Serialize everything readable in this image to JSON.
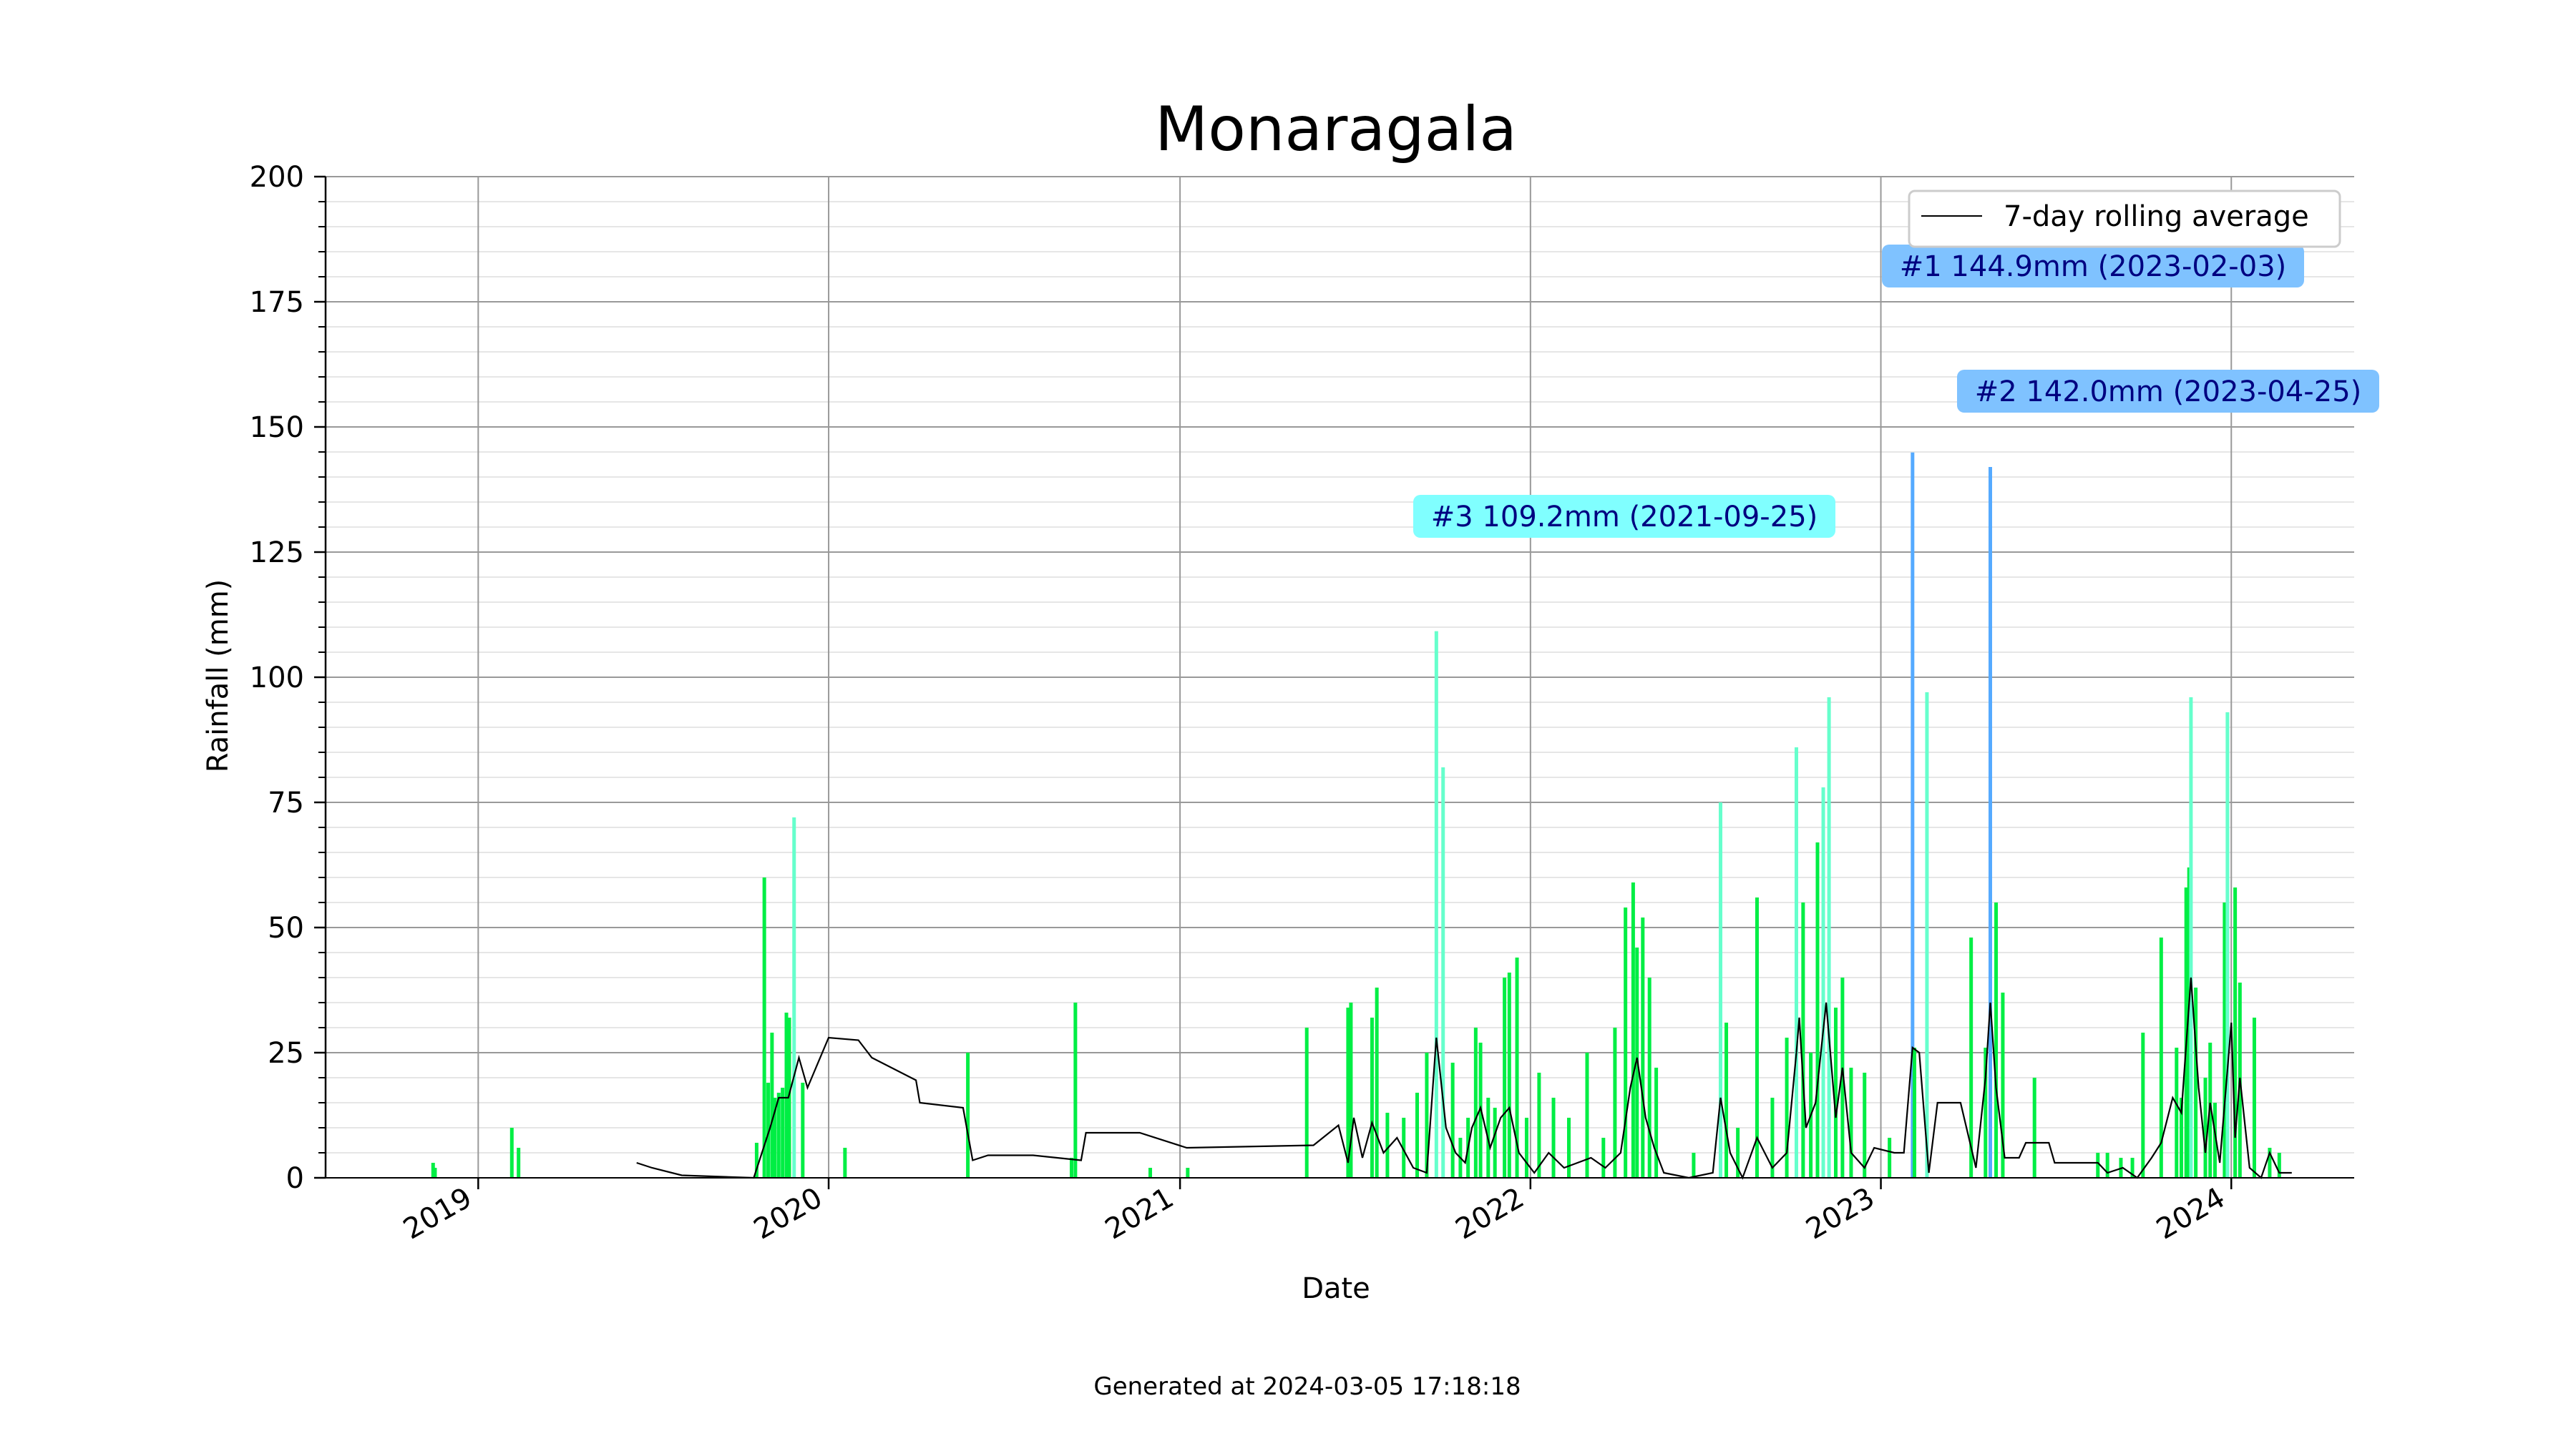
{
  "chart_data": {
    "type": "bar",
    "title": "Monaragala",
    "xlabel": "Date",
    "ylabel": "Rainfall (mm)",
    "footer": "Generated at 2024-03-05 17:18:18",
    "xlim": [
      "2018-07-26",
      "2024-05-08"
    ],
    "ylim": [
      0,
      200
    ],
    "yticks": [
      0,
      25,
      50,
      75,
      100,
      125,
      150,
      175,
      200
    ],
    "xticks": [
      {
        "date": "2019-01-01",
        "label": "2019"
      },
      {
        "date": "2020-01-01",
        "label": "2020"
      },
      {
        "date": "2021-01-01",
        "label": "2021"
      },
      {
        "date": "2022-01-01",
        "label": "2022"
      },
      {
        "date": "2023-01-01",
        "label": "2023"
      },
      {
        "date": "2024-01-01",
        "label": "2024"
      }
    ],
    "grid": true,
    "legend": {
      "position": "top-right",
      "entries": [
        {
          "label": "7-day rolling average",
          "color": "#000000"
        }
      ]
    },
    "colors": {
      "low": "#00ee44",
      "mid": "#66ffcc",
      "high": "#55aaff",
      "line": "#000000",
      "grid": "#999999",
      "minor_grid": "#e6e6e6"
    },
    "annotations": [
      {
        "text": "#1 144.9mm (2023-02-03)",
        "date": "2023-02-03",
        "value": 144.9,
        "bg": "#7fc2ff"
      },
      {
        "text": "#2 142.0mm (2023-04-25)",
        "date": "2023-04-25",
        "value": 142.0,
        "bg": "#7fc2ff"
      },
      {
        "text": "#3 109.2mm (2021-09-25)",
        "date": "2021-09-25",
        "value": 109.2,
        "bg": "#80ffff"
      }
    ],
    "series": [
      {
        "type": "bar",
        "points": [
          [
            "2018-11-15",
            3
          ],
          [
            "2018-11-17",
            2
          ],
          [
            "2019-02-05",
            10
          ],
          [
            "2019-02-12",
            6
          ],
          [
            "2019-10-18",
            7
          ],
          [
            "2019-10-26",
            60
          ],
          [
            "2019-10-30",
            19
          ],
          [
            "2019-11-03",
            29
          ],
          [
            "2019-11-06",
            16
          ],
          [
            "2019-11-10",
            17
          ],
          [
            "2019-11-14",
            18
          ],
          [
            "2019-11-18",
            33
          ],
          [
            "2019-11-21",
            32
          ],
          [
            "2019-11-26",
            72
          ],
          [
            "2019-12-05",
            19
          ],
          [
            "2020-01-18",
            6
          ],
          [
            "2020-05-25",
            25
          ],
          [
            "2020-09-10",
            4
          ],
          [
            "2020-09-14",
            35
          ],
          [
            "2020-12-01",
            2
          ],
          [
            "2021-01-09",
            2
          ],
          [
            "2021-05-13",
            30
          ],
          [
            "2021-06-25",
            34
          ],
          [
            "2021-06-28",
            35
          ],
          [
            "2021-07-20",
            32
          ],
          [
            "2021-07-25",
            38
          ],
          [
            "2021-08-05",
            13
          ],
          [
            "2021-08-22",
            12
          ],
          [
            "2021-09-05",
            17
          ],
          [
            "2021-09-15",
            25
          ],
          [
            "2021-09-25",
            109.2
          ],
          [
            "2021-10-02",
            82
          ],
          [
            "2021-10-12",
            23
          ],
          [
            "2021-10-20",
            8
          ],
          [
            "2021-10-28",
            12
          ],
          [
            "2021-11-05",
            30
          ],
          [
            "2021-11-10",
            27
          ],
          [
            "2021-11-18",
            16
          ],
          [
            "2021-11-25",
            14
          ],
          [
            "2021-12-05",
            40
          ],
          [
            "2021-12-10",
            41
          ],
          [
            "2021-12-18",
            44
          ],
          [
            "2021-12-28",
            12
          ],
          [
            "2022-01-10",
            21
          ],
          [
            "2022-01-25",
            16
          ],
          [
            "2022-02-10",
            12
          ],
          [
            "2022-03-01",
            25
          ],
          [
            "2022-03-18",
            8
          ],
          [
            "2022-03-30",
            30
          ],
          [
            "2022-04-10",
            54
          ],
          [
            "2022-04-18",
            59
          ],
          [
            "2022-04-22",
            46
          ],
          [
            "2022-04-28",
            52
          ],
          [
            "2022-05-05",
            40
          ],
          [
            "2022-05-12",
            22
          ],
          [
            "2022-06-20",
            5
          ],
          [
            "2022-07-18",
            75
          ],
          [
            "2022-07-24",
            31
          ],
          [
            "2022-08-05",
            10
          ],
          [
            "2022-08-25",
            56
          ],
          [
            "2022-09-10",
            16
          ],
          [
            "2022-09-25",
            28
          ],
          [
            "2022-10-05",
            86
          ],
          [
            "2022-10-12",
            55
          ],
          [
            "2022-10-20",
            25
          ],
          [
            "2022-10-27",
            67
          ],
          [
            "2022-11-02",
            78
          ],
          [
            "2022-11-08",
            96
          ],
          [
            "2022-11-15",
            34
          ],
          [
            "2022-11-22",
            40
          ],
          [
            "2022-12-01",
            22
          ],
          [
            "2022-12-15",
            21
          ],
          [
            "2023-01-10",
            8
          ],
          [
            "2023-02-03",
            144.9
          ],
          [
            "2023-02-05",
            26
          ],
          [
            "2023-02-18",
            97
          ],
          [
            "2023-04-05",
            48
          ],
          [
            "2023-04-20",
            26
          ],
          [
            "2023-04-25",
            142.0
          ],
          [
            "2023-05-01",
            55
          ],
          [
            "2023-05-08",
            37
          ],
          [
            "2023-06-10",
            20
          ],
          [
            "2023-08-15",
            5
          ],
          [
            "2023-08-25",
            5
          ],
          [
            "2023-09-08",
            4
          ],
          [
            "2023-09-20",
            4
          ],
          [
            "2023-10-01",
            29
          ],
          [
            "2023-10-20",
            48
          ],
          [
            "2023-11-05",
            26
          ],
          [
            "2023-11-10",
            16
          ],
          [
            "2023-11-15",
            58
          ],
          [
            "2023-11-18",
            62
          ],
          [
            "2023-11-20",
            96
          ],
          [
            "2023-11-25",
            38
          ],
          [
            "2023-12-05",
            20
          ],
          [
            "2023-12-10",
            27
          ],
          [
            "2023-12-15",
            15
          ],
          [
            "2023-12-25",
            55
          ],
          [
            "2023-12-28",
            93
          ],
          [
            "2024-01-05",
            58
          ],
          [
            "2024-01-10",
            39
          ],
          [
            "2024-01-25",
            32
          ],
          [
            "2024-02-10",
            6
          ],
          [
            "2024-02-20",
            5
          ]
        ]
      },
      {
        "type": "line",
        "name": "7-day rolling average",
        "points": [
          [
            "2019-06-15",
            3
          ],
          [
            "2019-07-01",
            2
          ],
          [
            "2019-08-01",
            0.5
          ],
          [
            "2019-10-15",
            0
          ],
          [
            "2019-11-01",
            10
          ],
          [
            "2019-11-10",
            16
          ],
          [
            "2019-11-20",
            16
          ],
          [
            "2019-12-01",
            24
          ],
          [
            "2019-12-10",
            18
          ],
          [
            "2020-01-01",
            28
          ],
          [
            "2020-02-01",
            27.5
          ],
          [
            "2020-02-15",
            24
          ],
          [
            "2020-04-01",
            19.5
          ],
          [
            "2020-04-05",
            15
          ],
          [
            "2020-05-20",
            14
          ],
          [
            "2020-05-30",
            3.5
          ],
          [
            "2020-06-15",
            4.5
          ],
          [
            "2020-08-01",
            4.5
          ],
          [
            "2020-09-20",
            3.5
          ],
          [
            "2020-09-25",
            9
          ],
          [
            "2020-10-20",
            9
          ],
          [
            "2020-11-20",
            9
          ],
          [
            "2021-01-08",
            6
          ],
          [
            "2021-05-20",
            6.5
          ],
          [
            "2021-06-15",
            10.5
          ],
          [
            "2021-06-25",
            3
          ],
          [
            "2021-07-01",
            12
          ],
          [
            "2021-07-10",
            4
          ],
          [
            "2021-07-20",
            11
          ],
          [
            "2021-08-01",
            5
          ],
          [
            "2021-08-15",
            8
          ],
          [
            "2021-09-01",
            2
          ],
          [
            "2021-09-15",
            1
          ],
          [
            "2021-09-25",
            28
          ],
          [
            "2021-10-05",
            10
          ],
          [
            "2021-10-15",
            5
          ],
          [
            "2021-10-25",
            3
          ],
          [
            "2021-11-01",
            10
          ],
          [
            "2021-11-10",
            14
          ],
          [
            "2021-11-20",
            6
          ],
          [
            "2021-12-01",
            12
          ],
          [
            "2021-12-10",
            14
          ],
          [
            "2021-12-20",
            5
          ],
          [
            "2022-01-05",
            1
          ],
          [
            "2022-01-20",
            5
          ],
          [
            "2022-02-05",
            2
          ],
          [
            "2022-03-05",
            4
          ],
          [
            "2022-03-20",
            2
          ],
          [
            "2022-04-05",
            5
          ],
          [
            "2022-04-15",
            18
          ],
          [
            "2022-04-22",
            24
          ],
          [
            "2022-05-01",
            12
          ],
          [
            "2022-05-10",
            6
          ],
          [
            "2022-05-20",
            1
          ],
          [
            "2022-06-15",
            0
          ],
          [
            "2022-07-10",
            1
          ],
          [
            "2022-07-18",
            16
          ],
          [
            "2022-07-28",
            5
          ],
          [
            "2022-08-10",
            0
          ],
          [
            "2022-08-25",
            8
          ],
          [
            "2022-09-10",
            2
          ],
          [
            "2022-09-25",
            5
          ],
          [
            "2022-10-05",
            25
          ],
          [
            "2022-10-08",
            32
          ],
          [
            "2022-10-15",
            10
          ],
          [
            "2022-10-25",
            15
          ],
          [
            "2022-11-05",
            35
          ],
          [
            "2022-11-15",
            12
          ],
          [
            "2022-11-22",
            22
          ],
          [
            "2022-12-01",
            5
          ],
          [
            "2022-12-15",
            2
          ],
          [
            "2022-12-25",
            6
          ],
          [
            "2023-01-15",
            5
          ],
          [
            "2023-01-25",
            5
          ],
          [
            "2023-02-03",
            26
          ],
          [
            "2023-02-10",
            25
          ],
          [
            "2023-02-20",
            1
          ],
          [
            "2023-03-01",
            15
          ],
          [
            "2023-03-25",
            15
          ],
          [
            "2023-04-10",
            2
          ],
          [
            "2023-04-20",
            20
          ],
          [
            "2023-04-25",
            35
          ],
          [
            "2023-05-01",
            18
          ],
          [
            "2023-05-10",
            4
          ],
          [
            "2023-05-25",
            4
          ],
          [
            "2023-06-01",
            7
          ],
          [
            "2023-06-25",
            7
          ],
          [
            "2023-07-01",
            3
          ],
          [
            "2023-08-15",
            3
          ],
          [
            "2023-08-25",
            1
          ],
          [
            "2023-09-10",
            2
          ],
          [
            "2023-09-25",
            0
          ],
          [
            "2023-10-10",
            4
          ],
          [
            "2023-10-20",
            7
          ],
          [
            "2023-11-01",
            16
          ],
          [
            "2023-11-10",
            13
          ],
          [
            "2023-11-20",
            40
          ],
          [
            "2023-11-28",
            18
          ],
          [
            "2023-12-05",
            5
          ],
          [
            "2023-12-10",
            15
          ],
          [
            "2023-12-20",
            3
          ],
          [
            "2024-01-01",
            31
          ],
          [
            "2024-01-05",
            8
          ],
          [
            "2024-01-10",
            20
          ],
          [
            "2024-01-20",
            2
          ],
          [
            "2024-02-01",
            0
          ],
          [
            "2024-02-10",
            5
          ],
          [
            "2024-02-20",
            1
          ],
          [
            "2024-03-04",
            1
          ]
        ]
      }
    ]
  }
}
